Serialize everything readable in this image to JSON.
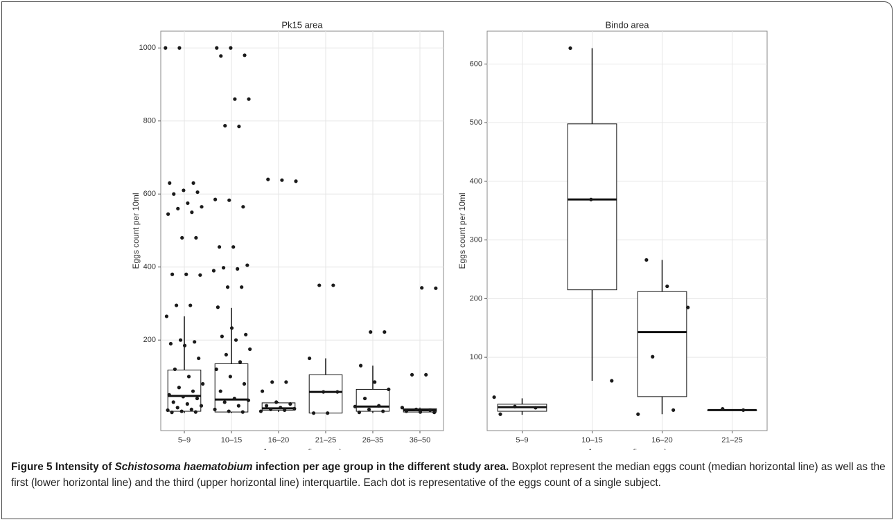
{
  "chart_data": [
    {
      "type": "box",
      "title": "Pk15 area",
      "xlabel": "Age groups (in years)",
      "ylabel": "Eggs count per 10ml",
      "categories": [
        "5–9",
        "10–15",
        "16–20",
        "21–25",
        "26–35",
        "36–50"
      ],
      "boxes": [
        {
          "low": 0,
          "q1": 5,
          "median": 47,
          "q3": 118,
          "high": 265
        },
        {
          "low": 0,
          "q1": 3,
          "median": 37,
          "q3": 135,
          "high": 288
        },
        {
          "low": 3,
          "q1": 8,
          "median": 13,
          "q3": 28,
          "high": 30
        },
        {
          "low": 0,
          "q1": 0,
          "median": 58,
          "q3": 105,
          "high": 150
        },
        {
          "low": 0,
          "q1": 5,
          "median": 18,
          "q3": 65,
          "high": 130
        },
        {
          "low": 0,
          "q1": 3,
          "median": 8,
          "q3": 12,
          "high": 15
        }
      ],
      "points": [
        [
          1000,
          1000,
          630,
          630,
          610,
          605,
          600,
          575,
          565,
          560,
          550,
          545,
          480,
          480,
          380,
          380,
          378,
          295,
          295,
          265,
          200,
          195,
          190,
          185,
          150,
          120,
          100,
          80,
          70,
          60,
          50,
          45,
          40,
          30,
          25,
          20,
          15,
          10,
          8,
          5,
          3,
          2
        ],
        [
          1000,
          1000,
          980,
          978,
          860,
          860,
          787,
          785,
          585,
          583,
          565,
          455,
          455,
          405,
          398,
          395,
          390,
          345,
          345,
          290,
          233,
          215,
          210,
          200,
          175,
          160,
          140,
          120,
          100,
          80,
          60,
          40,
          35,
          30,
          20,
          10,
          5,
          3
        ],
        [
          640,
          638,
          635,
          85,
          85,
          60,
          30,
          25,
          20,
          15,
          12,
          10,
          8,
          5
        ],
        [
          350,
          350,
          150,
          58,
          58,
          0,
          0
        ],
        [
          222,
          222,
          130,
          85,
          65,
          40,
          20,
          18,
          10,
          5,
          2
        ],
        [
          343,
          342,
          105,
          105,
          15,
          10,
          8,
          5,
          3,
          2
        ]
      ],
      "ylim": [
        -48,
        1046
      ],
      "yticks": [
        200,
        400,
        600,
        800,
        1000
      ],
      "grid": true
    },
    {
      "type": "box",
      "title": "Bindo area",
      "xlabel": "Age groups (in years)",
      "ylabel": "Eggs count per 10ml",
      "categories": [
        "5–9",
        "10–15",
        "16–20",
        "21–25"
      ],
      "boxes": [
        {
          "low": 2,
          "q1": 8,
          "median": 15,
          "q3": 20,
          "high": 30
        },
        {
          "low": 60,
          "q1": 215,
          "median": 369,
          "q3": 498,
          "high": 627
        },
        {
          "low": 3,
          "q1": 33,
          "median": 143,
          "q3": 212,
          "high": 266
        },
        {
          "low": 10,
          "q1": 10,
          "median": 10,
          "q3": 10,
          "high": 10
        }
      ],
      "points": [
        [
          32,
          16,
          14,
          3
        ],
        [
          627,
          369,
          60
        ],
        [
          266,
          221,
          185,
          101,
          10,
          3
        ],
        [
          12,
          10
        ]
      ],
      "ylim": [
        -25,
        656
      ],
      "yticks": [
        100,
        200,
        300,
        400,
        500,
        600
      ],
      "grid": true
    }
  ],
  "caption": {
    "label": "Figure 5",
    "title_a": "Intensity of",
    "species": "Schistosoma haematobium",
    "title_b": "infection per age group in the different study area.",
    "text": "Boxplot represent the median eggs count (median horizontal line) as well as the first (lower horizontal line) and the third (upper horizontal line) interquartile. Each dot is representative of the eggs count of a single subject."
  }
}
